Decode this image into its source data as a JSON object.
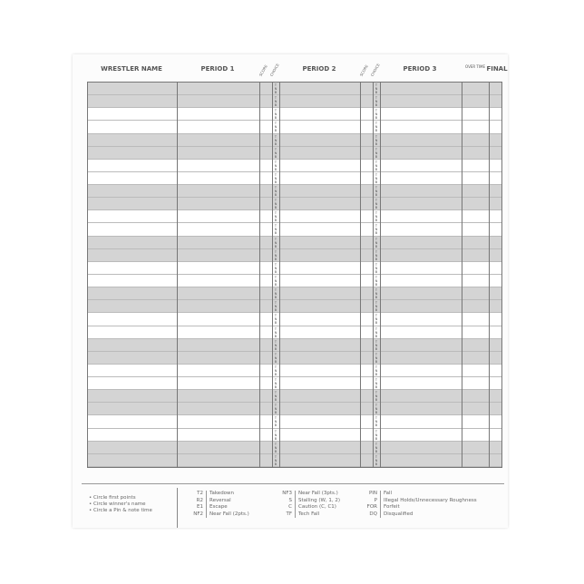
{
  "headers": {
    "name": "WRESTLER NAME",
    "period1": "PERIOD 1",
    "period2": "PERIOD 2",
    "period3": "PERIOD 3",
    "score": "SCORE",
    "choice": "CHOICE",
    "overtime": "OVER TIME",
    "final": "FINAL"
  },
  "choice_marks": "T N B",
  "row_count": 30,
  "colors": {
    "shaded_row": "#d4d4d4",
    "unshaded_row": "#ffffff"
  },
  "notes": [
    "• Circle first points",
    "• Circle winner's name",
    "• Circle a Pin & note time"
  ],
  "legend": [
    [
      {
        "code": "T2",
        "label": "Takedown"
      },
      {
        "code": "R2",
        "label": "Reversal"
      },
      {
        "code": "E1",
        "label": "Escape"
      },
      {
        "code": "NF2",
        "label": "Near Fall (2pts.)"
      }
    ],
    [
      {
        "code": "NF3",
        "label": "Near Fall (3pts.)"
      },
      {
        "code": "S",
        "label": "Stalling (W, 1, 2)"
      },
      {
        "code": "C",
        "label": "Caution (C, C1)"
      },
      {
        "code": "TF",
        "label": "Tech Fall"
      }
    ],
    [
      {
        "code": "PIN",
        "label": "Fall"
      },
      {
        "code": "P",
        "label": "Illegal Holds/Unnecessary Roughness"
      },
      {
        "code": "FOR",
        "label": "Forfeit"
      },
      {
        "code": "DQ",
        "label": "Disqualified"
      }
    ]
  ]
}
